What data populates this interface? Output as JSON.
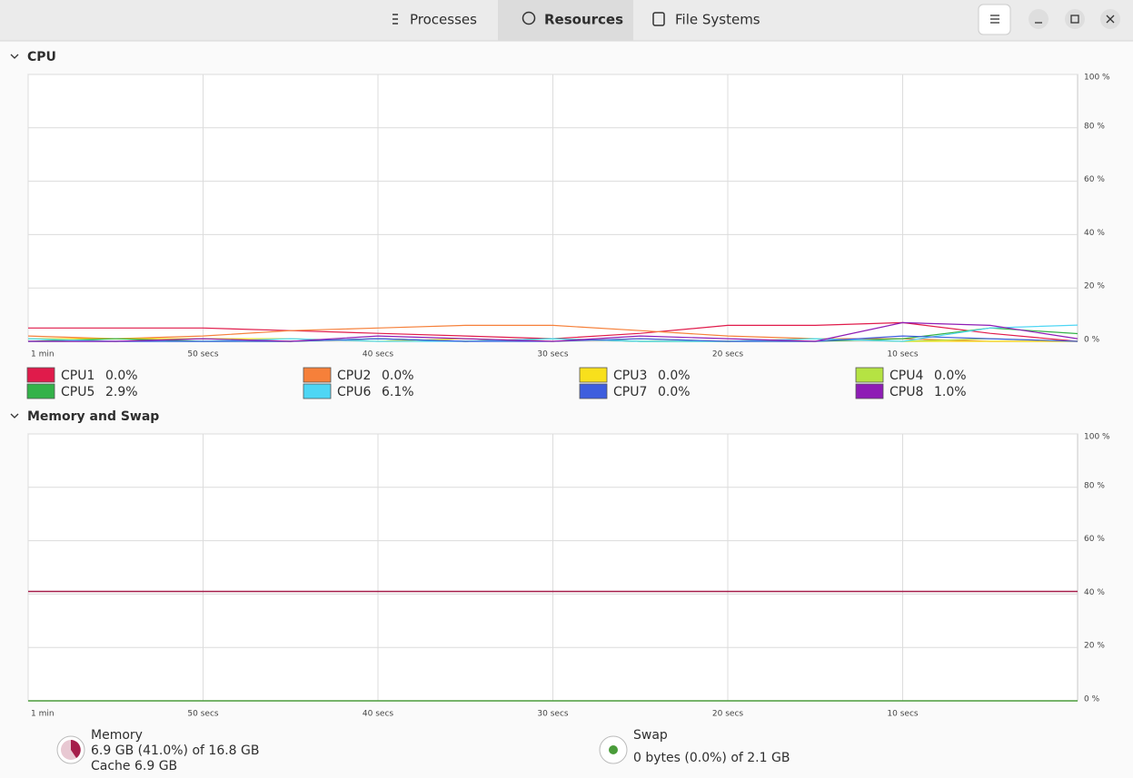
{
  "header": {
    "tabs": [
      "Processes",
      "Resources",
      "File Systems"
    ]
  },
  "sections": [
    "CPU",
    "Memory and Swap"
  ],
  "chart_data": [
    {
      "type": "line",
      "x": [
        60,
        55,
        50,
        45,
        40,
        35,
        30,
        25,
        20,
        15,
        10,
        5,
        0
      ],
      "xlim": [
        60,
        0
      ],
      "xticks": [
        {
          "value": 60,
          "label": "1 min"
        },
        {
          "value": 50,
          "label": "50 secs"
        },
        {
          "value": 40,
          "label": "40 secs"
        },
        {
          "value": 30,
          "label": "30 secs"
        },
        {
          "value": 20,
          "label": "20 secs"
        },
        {
          "value": 10,
          "label": "10 secs"
        }
      ],
      "ylim": [
        0,
        100
      ],
      "yticks": [
        {
          "value": 0,
          "label": "0 %"
        },
        {
          "value": 20,
          "label": "20 %"
        },
        {
          "value": 40,
          "label": "40 %"
        },
        {
          "value": 60,
          "label": "60 %"
        },
        {
          "value": 80,
          "label": "80 %"
        },
        {
          "value": 100,
          "label": "100 %"
        }
      ],
      "grid": true,
      "series": [
        {
          "name": "CPU1",
          "color": "#e01b4b",
          "current": "0.0%",
          "values": [
            5,
            5,
            5,
            4,
            3,
            2,
            1,
            3,
            6,
            6,
            7,
            3,
            0
          ]
        },
        {
          "name": "CPU2",
          "color": "#f6803a",
          "current": "0.0%",
          "values": [
            2,
            1,
            2,
            4,
            5,
            6,
            6,
            4,
            2,
            1,
            1,
            0,
            0
          ]
        },
        {
          "name": "CPU3",
          "color": "#f8e01c",
          "current": "0.0%",
          "values": [
            1,
            1,
            1,
            1,
            0,
            1,
            0,
            1,
            0,
            1,
            0,
            0,
            0
          ]
        },
        {
          "name": "CPU4",
          "color": "#b5e343",
          "current": "0.0%",
          "values": [
            1,
            0,
            1,
            0,
            1,
            0,
            1,
            0,
            0,
            1,
            0,
            1,
            0
          ]
        },
        {
          "name": "CPU5",
          "color": "#33b249",
          "current": "2.9%",
          "values": [
            0,
            1,
            0,
            0,
            1,
            0,
            1,
            0,
            0,
            0,
            1,
            5,
            2.9
          ]
        },
        {
          "name": "CPU6",
          "color": "#4ed6f4",
          "current": "6.1%",
          "values": [
            1,
            0,
            0,
            1,
            0,
            0,
            1,
            0,
            0,
            1,
            0,
            5,
            6.1
          ]
        },
        {
          "name": "CPU7",
          "color": "#3e5ede",
          "current": "0.0%",
          "values": [
            0,
            0,
            0,
            0,
            1,
            0,
            0,
            1,
            0,
            0,
            2,
            1,
            0
          ]
        },
        {
          "name": "CPU8",
          "color": "#8e1db5",
          "current": "1.0%",
          "values": [
            0,
            0,
            1,
            0,
            2,
            1,
            0,
            2,
            1,
            0,
            7,
            6,
            1
          ]
        }
      ]
    },
    {
      "type": "line",
      "x": [
        60,
        55,
        50,
        45,
        40,
        35,
        30,
        25,
        20,
        15,
        10,
        5,
        0
      ],
      "xlim": [
        60,
        0
      ],
      "xticks": [
        {
          "value": 60,
          "label": "1 min"
        },
        {
          "value": 50,
          "label": "50 secs"
        },
        {
          "value": 40,
          "label": "40 secs"
        },
        {
          "value": 30,
          "label": "30 secs"
        },
        {
          "value": 20,
          "label": "20 secs"
        },
        {
          "value": 10,
          "label": "10 secs"
        }
      ],
      "ylim": [
        0,
        100
      ],
      "yticks": [
        {
          "value": 0,
          "label": "0 %"
        },
        {
          "value": 20,
          "label": "20 %"
        },
        {
          "value": 40,
          "label": "40 %"
        },
        {
          "value": 60,
          "label": "60 %"
        },
        {
          "value": 80,
          "label": "80 %"
        },
        {
          "value": 100,
          "label": "100 %"
        }
      ],
      "grid": true,
      "series": [
        {
          "name": "Memory",
          "color": "#a51d4a",
          "details": [
            "6.9 GB (41.0%) of 16.8 GB",
            "Cache 6.9 GB"
          ],
          "values": [
            41,
            41,
            41,
            41,
            41,
            41,
            41,
            41,
            41,
            41,
            41,
            41,
            41
          ]
        },
        {
          "name": "Swap",
          "color": "#4a9c3a",
          "details": [
            "0 bytes (0.0%) of 2.1 GB"
          ],
          "values": [
            0,
            0,
            0,
            0,
            0,
            0,
            0,
            0,
            0,
            0,
            0,
            0,
            0
          ]
        }
      ]
    }
  ]
}
